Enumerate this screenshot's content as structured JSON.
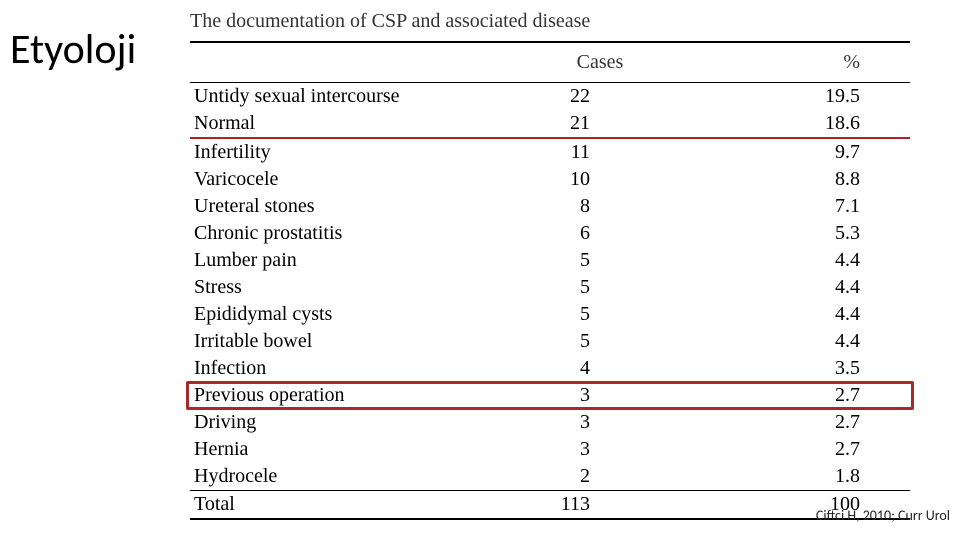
{
  "heading": "Etyoloji",
  "table": {
    "title": "The documentation of CSP and associated disease",
    "col_cases_header": "Cases",
    "col_pct_header": "%",
    "rows": [
      {
        "label": "Untidy sexual intercourse",
        "cases": "22",
        "pct": "19.5",
        "underline": false,
        "boxed": false
      },
      {
        "label": "Normal",
        "cases": "21",
        "pct": "18.6",
        "underline": true,
        "boxed": false
      },
      {
        "label": "Infertility",
        "cases": "11",
        "pct": "9.7",
        "underline": false,
        "boxed": false
      },
      {
        "label": "Varicocele",
        "cases": "10",
        "pct": "8.8",
        "underline": false,
        "boxed": false
      },
      {
        "label": "Ureteral stones",
        "cases": "8",
        "pct": "7.1",
        "underline": false,
        "boxed": false
      },
      {
        "label": "Chronic prostatitis",
        "cases": "6",
        "pct": "5.3",
        "underline": false,
        "boxed": false
      },
      {
        "label": "Lumber pain",
        "cases": "5",
        "pct": "4.4",
        "underline": false,
        "boxed": false
      },
      {
        "label": "Stress",
        "cases": "5",
        "pct": "4.4",
        "underline": false,
        "boxed": false
      },
      {
        "label": "Epididymal cysts",
        "cases": "5",
        "pct": "4.4",
        "underline": false,
        "boxed": false
      },
      {
        "label": "Irritable bowel",
        "cases": "5",
        "pct": "4.4",
        "underline": false,
        "boxed": false
      },
      {
        "label": "Infection",
        "cases": "4",
        "pct": "3.5",
        "underline": false,
        "boxed": false
      },
      {
        "label": "Previous operation",
        "cases": "3",
        "pct": "2.7",
        "underline": false,
        "boxed": true
      },
      {
        "label": "Driving",
        "cases": "3",
        "pct": "2.7",
        "underline": false,
        "boxed": false
      },
      {
        "label": "Hernia",
        "cases": "3",
        "pct": "2.7",
        "underline": false,
        "boxed": false
      },
      {
        "label": "Hydrocele",
        "cases": "2",
        "pct": "1.8",
        "underline": false,
        "boxed": false
      },
      {
        "label": "Total",
        "cases": "113",
        "pct": "100",
        "underline": false,
        "boxed": false
      }
    ],
    "rule_before_total": true
  },
  "citation": "Ciftci H, 2010; Curr Urol",
  "styling": {
    "page_bg": "#ffffff",
    "heading_font": "Calibri",
    "heading_fontsize": 42,
    "table_font": "Georgia",
    "table_fontsize": 20,
    "line_height": 27,
    "underline_color": "#b22222",
    "box_color": "#a52a2a",
    "rule_color": "#000000",
    "text_color": "#000000",
    "title_color": "#333333"
  }
}
